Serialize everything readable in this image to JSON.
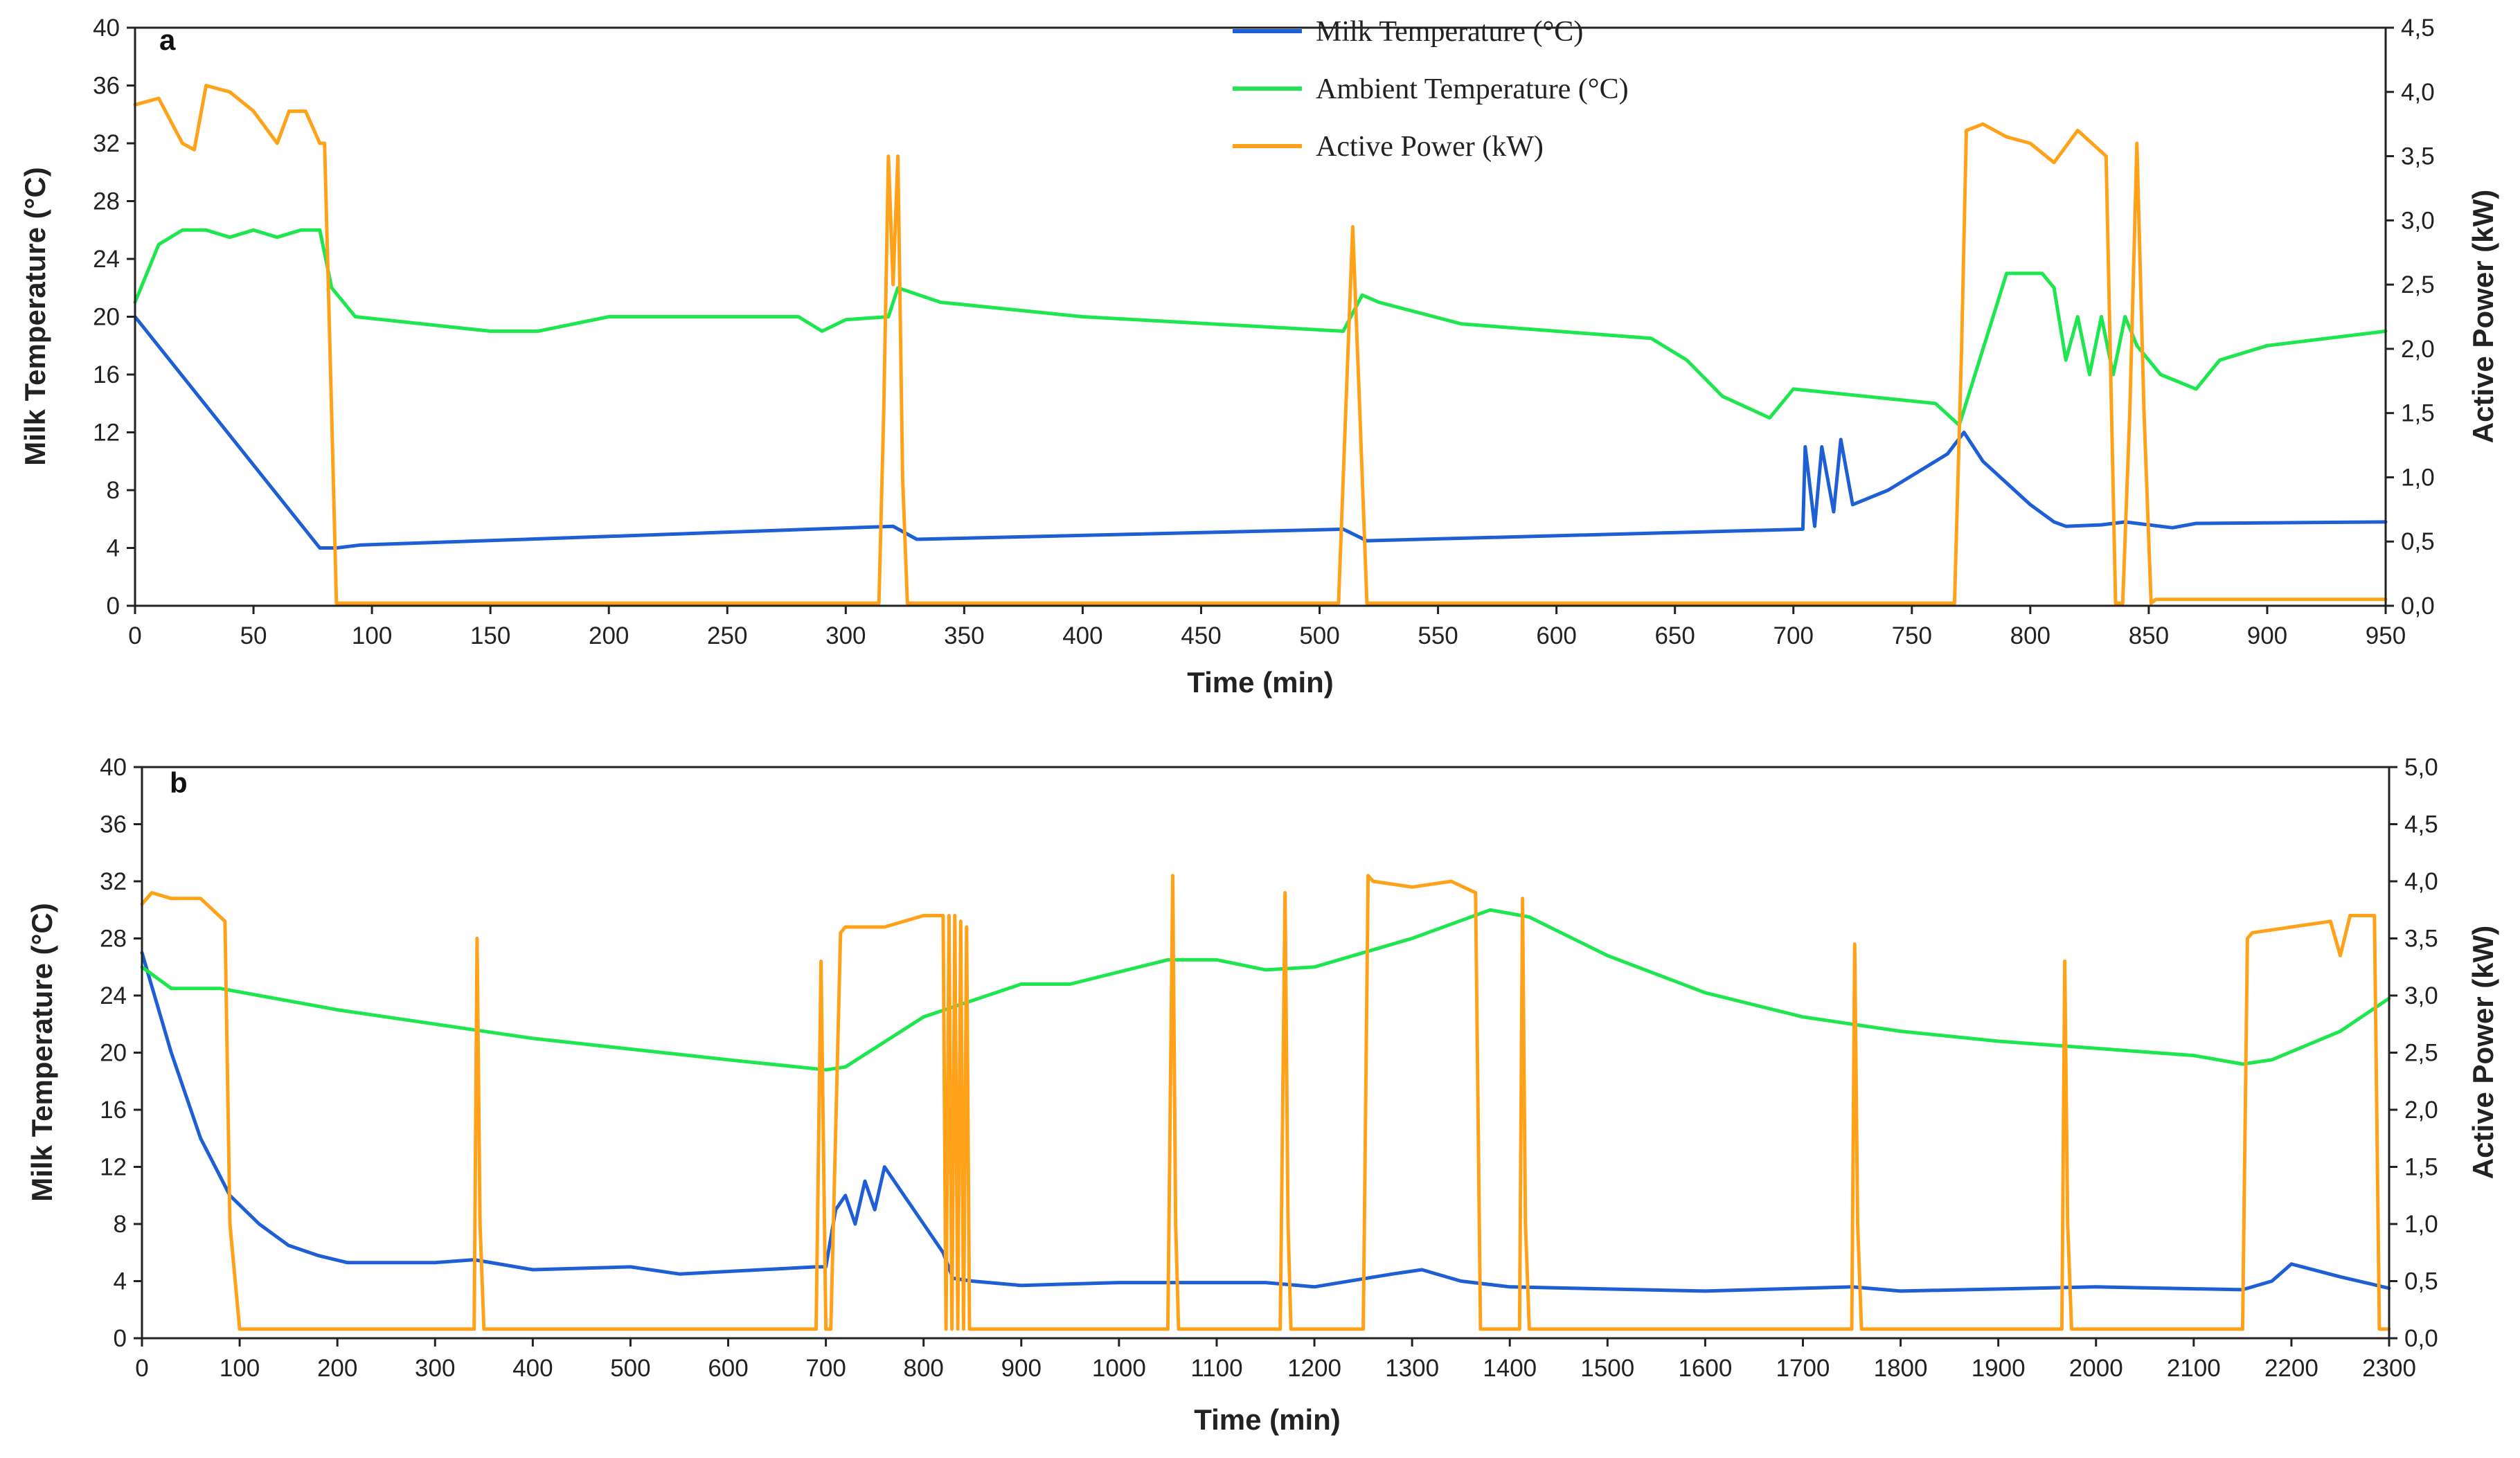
{
  "colors": {
    "milk": "#1f5fd6",
    "ambient": "#1ee64e",
    "power": "#ffa21a"
  },
  "legend": [
    {
      "key": "milk",
      "label": "Milk Temperature (°C)"
    },
    {
      "key": "ambient",
      "label": "Ambient Temperature (°C)"
    },
    {
      "key": "power",
      "label": "Active Power (kW)"
    }
  ],
  "chart_data": [
    {
      "type": "line",
      "panel": "a",
      "xlabel": "Time (min)",
      "ylabel": "Milk Temperature (°C)",
      "y2label": "Active Power (kW)",
      "xlim": [
        0,
        950
      ],
      "ylim": [
        0,
        40
      ],
      "y2lim": [
        0,
        4.5
      ],
      "xticks": [
        "0",
        "50",
        "100",
        "150",
        "200",
        "250",
        "300",
        "350",
        "400",
        "450",
        "500",
        "550",
        "600",
        "650",
        "700",
        "750",
        "800",
        "850",
        "900",
        "950"
      ],
      "yticks": [
        "0",
        "4",
        "8",
        "12",
        "16",
        "20",
        "24",
        "28",
        "32",
        "36",
        "40"
      ],
      "y2ticks": [
        "0,0",
        "0,5",
        "1,0",
        "1,5",
        "2,0",
        "2,5",
        "3,0",
        "3,5",
        "4,0",
        "4,5"
      ],
      "series": [
        {
          "key": "milk",
          "name": "Milk Temperature (°C)",
          "axis": "left",
          "x": [
            0,
            78,
            85,
            95,
            200,
            320,
            330,
            510,
            520,
            704,
            705,
            709,
            712,
            717,
            720,
            725,
            740,
            765,
            772,
            780,
            800,
            810,
            815,
            830,
            840,
            860,
            870,
            950
          ],
          "y": [
            20,
            4,
            4,
            4.2,
            4.8,
            5.5,
            4.6,
            5.3,
            4.5,
            5.3,
            11,
            5.5,
            11,
            6.5,
            11.5,
            7,
            8,
            10.5,
            12,
            10,
            7,
            5.8,
            5.5,
            5.6,
            5.8,
            5.4,
            5.7,
            5.8
          ]
        },
        {
          "key": "ambient",
          "name": "Ambient Temperature (°C)",
          "axis": "left",
          "x": [
            0,
            10,
            20,
            30,
            40,
            50,
            60,
            70,
            78,
            83,
            93,
            150,
            170,
            200,
            280,
            290,
            300,
            318,
            322,
            340,
            400,
            510,
            518,
            525,
            560,
            640,
            655,
            670,
            690,
            700,
            760,
            770,
            790,
            805,
            810,
            815,
            820,
            825,
            830,
            835,
            840,
            845,
            855,
            870,
            880,
            900,
            950
          ],
          "y": [
            21,
            25,
            26,
            26,
            25.5,
            26,
            25.5,
            26,
            26,
            22,
            20,
            19,
            19,
            20,
            20,
            19,
            19.8,
            20,
            22,
            21,
            20,
            19,
            21.5,
            21,
            19.5,
            18.5,
            17,
            14.5,
            13,
            15,
            14,
            12.5,
            23,
            23,
            22,
            17,
            20,
            16,
            20,
            16,
            20,
            18,
            16,
            15,
            17,
            18,
            19
          ]
        },
        {
          "key": "power",
          "name": "Active Power (kW)",
          "axis": "right",
          "x": [
            0,
            10,
            20,
            25,
            30,
            40,
            50,
            60,
            65,
            72,
            78,
            80,
            83,
            85,
            88,
            90,
            314,
            316,
            318,
            320,
            322,
            324,
            326,
            508,
            511,
            514,
            517,
            520,
            522,
            768,
            771,
            773,
            780,
            790,
            800,
            810,
            820,
            829,
            832,
            836,
            839,
            842,
            845,
            848,
            851,
            853,
            860,
            880,
            950
          ],
          "y": [
            3.9,
            3.95,
            3.6,
            3.55,
            4.05,
            4.0,
            3.85,
            3.6,
            3.85,
            3.85,
            3.6,
            3.6,
            1.5,
            0.02,
            0.02,
            0.02,
            0.02,
            1.5,
            3.5,
            2.5,
            3.5,
            1.0,
            0.02,
            0.02,
            1.5,
            2.95,
            1.5,
            0.02,
            0.02,
            0.02,
            2.0,
            3.7,
            3.75,
            3.65,
            3.6,
            3.45,
            3.7,
            3.55,
            3.5,
            0.02,
            0.02,
            1.5,
            3.6,
            1.5,
            0.02,
            0.05,
            0.05,
            0.05,
            0.05
          ]
        }
      ]
    },
    {
      "type": "line",
      "panel": "b",
      "xlabel": "Time (min)",
      "ylabel": "Milk Temperature (°C)",
      "y2label": "Active Power (kW)",
      "xlim": [
        0,
        2300
      ],
      "ylim": [
        0,
        40
      ],
      "y2lim": [
        0,
        5
      ],
      "xticks": [
        "0",
        "100",
        "200",
        "300",
        "400",
        "500",
        "600",
        "700",
        "800",
        "900",
        "1000",
        "1100",
        "1200",
        "1300",
        "1400",
        "1500",
        "1600",
        "1700",
        "1800",
        "1900",
        "2000",
        "2100",
        "2200",
        "2300"
      ],
      "yticks": [
        "0",
        "4",
        "8",
        "12",
        "16",
        "20",
        "24",
        "28",
        "32",
        "36",
        "40"
      ],
      "y2ticks": [
        "0,0",
        "0,5",
        "1,0",
        "1,5",
        "2,0",
        "2,5",
        "3,0",
        "3,5",
        "4,0",
        "4,5",
        "5,0"
      ],
      "series": [
        {
          "key": "milk",
          "name": "Milk Temperature (°C)",
          "axis": "left",
          "x": [
            0,
            30,
            60,
            90,
            120,
            150,
            180,
            210,
            300,
            340,
            400,
            500,
            550,
            690,
            700,
            710,
            720,
            730,
            740,
            750,
            760,
            780,
            800,
            820,
            830,
            850,
            900,
            1000,
            1150,
            1200,
            1280,
            1310,
            1350,
            1400,
            1600,
            1750,
            1800,
            2000,
            2150,
            2180,
            2200,
            2250,
            2300
          ],
          "y": [
            27,
            20,
            14,
            10,
            8,
            6.5,
            5.8,
            5.3,
            5.3,
            5.5,
            4.8,
            5.0,
            4.5,
            5.0,
            5.0,
            9,
            10,
            8,
            11,
            9,
            12,
            10,
            8,
            6,
            4.2,
            4.0,
            3.7,
            3.9,
            3.9,
            3.6,
            4.5,
            4.8,
            4.0,
            3.6,
            3.3,
            3.6,
            3.3,
            3.6,
            3.4,
            4.0,
            5.2,
            4.3,
            3.5
          ]
        },
        {
          "key": "ambient",
          "name": "Ambient Temperature (°C)",
          "axis": "left",
          "x": [
            0,
            30,
            80,
            200,
            400,
            600,
            700,
            720,
            800,
            900,
            950,
            1050,
            1100,
            1150,
            1200,
            1300,
            1380,
            1420,
            1500,
            1600,
            1700,
            1800,
            1900,
            2000,
            2100,
            2150,
            2180,
            2250,
            2300
          ],
          "y": [
            26,
            24.5,
            24.5,
            23,
            21,
            19.5,
            18.8,
            19,
            22.5,
            24.8,
            24.8,
            26.5,
            26.5,
            25.8,
            26,
            28,
            30,
            29.5,
            26.8,
            24.2,
            22.5,
            21.5,
            20.8,
            20.3,
            19.8,
            19.2,
            19.5,
            21.5,
            23.8
          ]
        },
        {
          "key": "power",
          "name": "Active Power (kW)",
          "axis": "right",
          "x": [
            0,
            10,
            30,
            60,
            85,
            90,
            100,
            200,
            340,
            343,
            346,
            350,
            600,
            690,
            695,
            700,
            705,
            715,
            720,
            760,
            800,
            820,
            823,
            826,
            829,
            832,
            835,
            838,
            841,
            844,
            847,
            850,
            860,
            1050,
            1055,
            1058,
            1061,
            1065,
            1165,
            1170,
            1173,
            1176,
            1180,
            1250,
            1255,
            1260,
            1300,
            1340,
            1365,
            1370,
            1373,
            1376,
            1410,
            1413,
            1416,
            1420,
            1750,
            1753,
            1756,
            1760,
            1965,
            1968,
            1971,
            1975,
            2150,
            2155,
            2160,
            2200,
            2240,
            2250,
            2260,
            2285,
            2290,
            2300
          ],
          "y": [
            3.8,
            3.9,
            3.85,
            3.85,
            3.65,
            1.0,
            0.08,
            0.08,
            0.08,
            3.5,
            1.0,
            0.08,
            0.08,
            0.08,
            3.3,
            0.08,
            0.08,
            3.55,
            3.6,
            3.6,
            3.7,
            3.7,
            0.08,
            3.7,
            0.08,
            3.7,
            0.08,
            3.65,
            0.08,
            3.6,
            0.08,
            0.08,
            0.08,
            0.08,
            4.05,
            1.0,
            0.08,
            0.08,
            0.08,
            3.9,
            1.0,
            0.08,
            0.08,
            0.08,
            4.05,
            4.0,
            3.95,
            4.0,
            3.9,
            0.08,
            0.08,
            0.08,
            0.08,
            3.85,
            1.0,
            0.08,
            0.08,
            3.45,
            1.0,
            0.08,
            0.08,
            3.3,
            1.0,
            0.08,
            0.08,
            3.5,
            3.55,
            3.6,
            3.65,
            3.35,
            3.7,
            3.7,
            0.08,
            0.08
          ]
        }
      ]
    }
  ]
}
